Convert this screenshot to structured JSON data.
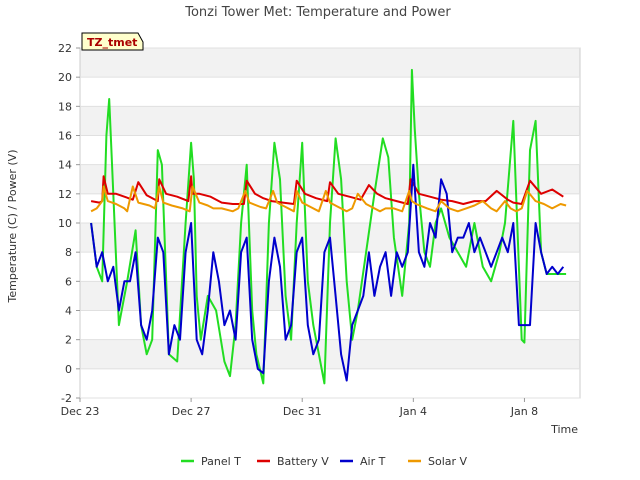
{
  "chart_data": {
    "type": "line",
    "title": "Tonzi Tower Met: Temperature and Power",
    "xlabel": "Time",
    "ylabel": "Temperature (C) / Power (V)",
    "badge": "TZ_tmet",
    "x_unit": "days since Dec 23",
    "xlim": [
      0,
      18
    ],
    "ylim": [
      -2,
      22
    ],
    "yticks": [
      -2,
      0,
      2,
      4,
      6,
      8,
      10,
      12,
      14,
      16,
      18,
      20,
      22
    ],
    "xticks": [
      {
        "value": 0,
        "label": "Dec 23"
      },
      {
        "value": 4,
        "label": "Dec 27"
      },
      {
        "value": 8,
        "label": "Dec 31"
      },
      {
        "value": 12,
        "label": "Jan 4"
      },
      {
        "value": 16,
        "label": "Jan 8"
      }
    ],
    "series": [
      {
        "name": "Panel T",
        "color": "#22dd22",
        "x": [
          0.4,
          0.6,
          0.8,
          0.95,
          1.05,
          1.2,
          1.4,
          1.7,
          2.0,
          2.2,
          2.4,
          2.6,
          2.8,
          2.95,
          3.2,
          3.5,
          3.8,
          4.0,
          4.1,
          4.2,
          4.35,
          4.6,
          4.9,
          5.2,
          5.4,
          5.6,
          5.8,
          6.0,
          6.2,
          6.35,
          6.6,
          6.8,
          7.0,
          7.2,
          7.4,
          7.6,
          7.8,
          8.0,
          8.2,
          8.4,
          8.6,
          8.8,
          9.0,
          9.2,
          9.4,
          9.6,
          9.8,
          10.0,
          10.3,
          10.6,
          10.9,
          11.1,
          11.3,
          11.6,
          11.85,
          11.95,
          12.05,
          12.2,
          12.4,
          12.6,
          12.8,
          13.0,
          13.3,
          13.6,
          13.9,
          14.2,
          14.5,
          14.8,
          15.1,
          15.3,
          15.6,
          15.9,
          16.0,
          16.2,
          16.4,
          16.6,
          16.8,
          17.0,
          17.2,
          17.5
        ],
        "values": [
          10,
          7,
          6,
          16,
          18.5,
          12,
          3,
          6,
          9.5,
          3,
          1,
          2,
          15,
          14,
          1,
          0.5,
          10,
          15.5,
          13,
          5,
          2,
          5,
          4,
          0.5,
          -0.5,
          3,
          10,
          14,
          4,
          1,
          -1,
          10,
          15.5,
          13,
          5,
          2,
          10,
          15.5,
          6,
          3,
          1,
          -1,
          10,
          15.8,
          13,
          6,
          2,
          4,
          8,
          12,
          15.8,
          14.5,
          9,
          5,
          10,
          20.5,
          16.5,
          12,
          8,
          7,
          10,
          11,
          9,
          8,
          7,
          10,
          7,
          6,
          8,
          10,
          17,
          2,
          1.8,
          15,
          17,
          8,
          6.5,
          6.5,
          6.5,
          6.5
        ]
      },
      {
        "name": "Battery V",
        "color": "#dd0000",
        "x": [
          0.4,
          0.7,
          0.8,
          0.85,
          1.0,
          1.3,
          1.6,
          1.9,
          2.1,
          2.4,
          2.8,
          2.85,
          3.1,
          3.5,
          3.9,
          4.0,
          4.05,
          4.3,
          4.7,
          5.1,
          5.5,
          5.9,
          6.0,
          6.3,
          6.6,
          6.9,
          7.3,
          7.7,
          7.8,
          8.1,
          8.5,
          8.9,
          9.0,
          9.3,
          9.7,
          10.1,
          10.4,
          10.7,
          11.0,
          11.4,
          11.8,
          11.9,
          12.2,
          12.6,
          13.0,
          13.4,
          13.8,
          14.2,
          14.6,
          15.0,
          15.4,
          15.6,
          15.9,
          16.2,
          16.6,
          17.0,
          17.4
        ],
        "values": [
          11.5,
          11.4,
          11.5,
          13.2,
          12,
          12,
          11.8,
          11.6,
          12.8,
          11.9,
          11.5,
          13,
          12,
          11.8,
          11.5,
          13.2,
          12,
          12,
          11.8,
          11.4,
          11.3,
          11.3,
          12.9,
          12,
          11.7,
          11.5,
          11.4,
          11.3,
          12.9,
          12,
          11.7,
          11.5,
          12.8,
          12,
          11.8,
          11.6,
          12.6,
          12,
          11.7,
          11.5,
          11.3,
          13,
          12,
          11.8,
          11.6,
          11.5,
          11.3,
          11.5,
          11.5,
          12.2,
          11.6,
          11.4,
          11.3,
          12.9,
          12,
          12.3,
          11.8
        ]
      },
      {
        "name": "Air T",
        "color": "#0000cc",
        "x": [
          0.4,
          0.6,
          0.8,
          1.0,
          1.2,
          1.4,
          1.6,
          1.8,
          2.0,
          2.2,
          2.4,
          2.6,
          2.8,
          3.0,
          3.2,
          3.4,
          3.6,
          3.8,
          4.0,
          4.2,
          4.4,
          4.6,
          4.8,
          5.0,
          5.2,
          5.4,
          5.6,
          5.8,
          6.0,
          6.2,
          6.4,
          6.6,
          6.8,
          7.0,
          7.2,
          7.4,
          7.6,
          7.8,
          8.0,
          8.2,
          8.4,
          8.6,
          8.8,
          9.0,
          9.2,
          9.4,
          9.6,
          9.8,
          10.0,
          10.2,
          10.4,
          10.6,
          10.8,
          11.0,
          11.2,
          11.4,
          11.6,
          11.8,
          12.0,
          12.2,
          12.4,
          12.6,
          12.8,
          13.0,
          13.2,
          13.4,
          13.6,
          13.8,
          14.0,
          14.2,
          14.4,
          14.6,
          14.8,
          15.0,
          15.2,
          15.4,
          15.6,
          15.8,
          16.0,
          16.2,
          16.4,
          16.6,
          16.8,
          17.0,
          17.2,
          17.4
        ],
        "values": [
          10,
          7,
          8,
          6,
          7,
          4,
          6,
          6,
          8,
          3,
          2,
          4,
          9,
          8,
          1,
          3,
          2,
          8,
          10,
          2,
          1,
          4,
          8,
          6,
          3,
          4,
          2,
          8,
          9,
          2,
          0,
          -0.3,
          6,
          9,
          7,
          2,
          3,
          8,
          9,
          3,
          1,
          2,
          8,
          9,
          5,
          1,
          -0.8,
          3,
          4,
          5,
          8,
          5,
          7,
          8,
          5,
          8,
          7,
          8,
          14,
          8,
          7,
          10,
          9,
          13,
          12,
          8,
          9,
          9,
          10,
          8,
          9,
          8,
          7,
          8,
          9,
          8,
          10,
          3,
          3,
          3,
          10,
          8,
          6.5,
          7,
          6.5,
          7
        ]
      },
      {
        "name": "Solar V",
        "color": "#ee9900",
        "x": [
          0.4,
          0.6,
          0.8,
          0.85,
          1.0,
          1.3,
          1.6,
          1.7,
          1.9,
          2.1,
          2.5,
          2.7,
          2.85,
          3.0,
          3.3,
          3.7,
          3.95,
          4.05,
          4.3,
          4.6,
          4.8,
          5.1,
          5.5,
          5.7,
          5.95,
          6.1,
          6.5,
          6.7,
          6.95,
          7.1,
          7.4,
          7.7,
          7.8,
          8.0,
          8.3,
          8.6,
          8.85,
          9.0,
          9.3,
          9.6,
          9.8,
          10.0,
          10.3,
          10.6,
          10.8,
          11.0,
          11.3,
          11.6,
          11.85,
          11.95,
          12.1,
          12.5,
          12.8,
          13.0,
          13.3,
          13.6,
          13.9,
          14.2,
          14.5,
          14.8,
          15.0,
          15.3,
          15.5,
          15.7,
          15.9,
          16.1,
          16.4,
          16.7,
          17.0,
          17.3,
          17.5
        ],
        "values": [
          10.8,
          11,
          11.5,
          12.5,
          11.5,
          11.3,
          11,
          10.8,
          12.5,
          11.4,
          11.2,
          11,
          12.5,
          11.4,
          11.2,
          11,
          10.8,
          12.5,
          11.4,
          11.2,
          11,
          11,
          10.8,
          11,
          12.2,
          11.4,
          11.1,
          11,
          12.2,
          11.4,
          11.1,
          10.8,
          12.2,
          11.4,
          11.1,
          10.8,
          12.2,
          11.4,
          11.1,
          10.8,
          11,
          12,
          11.3,
          11,
          10.8,
          11,
          11,
          10.8,
          12.2,
          11.5,
          11.3,
          11,
          10.8,
          11.5,
          11,
          10.8,
          11,
          11.2,
          11.5,
          11,
          10.8,
          11.5,
          11,
          10.8,
          11,
          12.2,
          11.5,
          11.3,
          11,
          11.3,
          11.2
        ]
      }
    ]
  }
}
